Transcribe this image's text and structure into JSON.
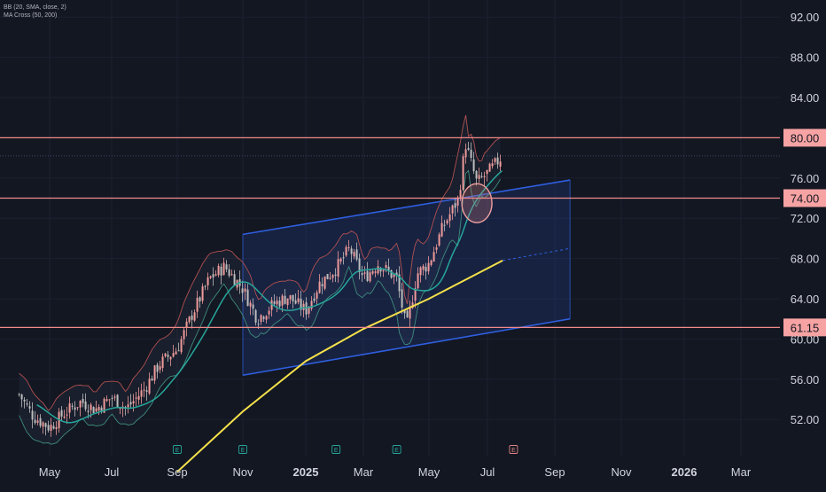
{
  "legend": {
    "bb": "BB (20, SMA, close, 2)",
    "ma": "MA Cross (50, 200)"
  },
  "colors": {
    "background": "#131722",
    "grid": "#1c2030",
    "axis_text": "#d1d4dc",
    "bullish": "#ef9a9a",
    "bearish": "#bdbdbd",
    "bb_band": "#b05050",
    "ma50": "#26a69a",
    "ma200": "#f5e14b",
    "channel": "#2f5fe0",
    "level_line": "#f08b8b",
    "level_tag_bg": "#f7a3a3",
    "level_tag_text": "#131722",
    "earnings_icon": "#26a69a",
    "upcoming_earnings_icon": "#e08585"
  },
  "chart_data": {
    "type": "candlestick",
    "title": "",
    "ylim": [
      48,
      94
    ],
    "y_ticks": [
      "92.00",
      "88.00",
      "84.00",
      "80.00",
      "76.00",
      "72.00",
      "68.00",
      "64.00",
      "60.00",
      "56.00",
      "52.00"
    ],
    "x_ticks": [
      "May",
      "Jul",
      "Sep",
      "Nov",
      "2025",
      "Mar",
      "May",
      "Jul",
      "Sep",
      "Nov",
      "2026",
      "Mar"
    ],
    "bold_x_ticks": [
      "2025",
      "2026"
    ],
    "price_levels": [
      {
        "label": "80.00",
        "value": 80.0
      },
      {
        "label": "74.00",
        "value": 74.0
      },
      {
        "label": "61.15",
        "value": 61.15
      }
    ],
    "current_price_line": 78.2,
    "channel": {
      "upper": [
        {
          "date": "2024-11",
          "value": 70.4
        },
        {
          "date": "2025-09-15",
          "value": 75.8
        }
      ],
      "lower": [
        {
          "date": "2024-11",
          "value": 56.4
        },
        {
          "date": "2025-09-15",
          "value": 62.0
        }
      ],
      "mid_dashed": [
        {
          "date": "2025-07-15",
          "value": 67.8
        },
        {
          "date": "2025-09-15",
          "value": 69.0
        }
      ]
    },
    "ma_lines": [
      {
        "key": "ma50",
        "label": "MA 50"
      },
      {
        "key": "ma200",
        "label": "MA 200"
      }
    ],
    "highlight_circle": {
      "date": "2025-06-20",
      "value": 73.5
    },
    "earnings_markers": [
      {
        "date": "2024-09",
        "label": "E",
        "upcoming": false
      },
      {
        "date": "2024-11",
        "label": "E",
        "upcoming": false
      },
      {
        "date": "2025-02",
        "label": "E",
        "upcoming": false
      },
      {
        "date": "2025-04",
        "label": "E",
        "upcoming": false
      },
      {
        "date": "2025-07-25",
        "label": "E",
        "upcoming": true
      }
    ],
    "price_path": [
      {
        "date": "2024-04-01",
        "close": 54.5
      },
      {
        "date": "2024-04-15",
        "close": 52.3
      },
      {
        "date": "2024-05-01",
        "close": 51.2
      },
      {
        "date": "2024-05-15",
        "close": 52.6
      },
      {
        "date": "2024-06-01",
        "close": 53.8
      },
      {
        "date": "2024-06-15",
        "close": 53.0
      },
      {
        "date": "2024-07-01",
        "close": 54.2
      },
      {
        "date": "2024-07-15",
        "close": 53.1
      },
      {
        "date": "2024-08-01",
        "close": 55.0
      },
      {
        "date": "2024-08-15",
        "close": 57.5
      },
      {
        "date": "2024-09-01",
        "close": 59.0
      },
      {
        "date": "2024-09-15",
        "close": 62.5
      },
      {
        "date": "2024-10-01",
        "close": 66.0
      },
      {
        "date": "2024-10-15",
        "close": 67.2
      },
      {
        "date": "2024-11-01",
        "close": 65.0
      },
      {
        "date": "2024-11-15",
        "close": 62.0
      },
      {
        "date": "2024-12-01",
        "close": 63.5
      },
      {
        "date": "2024-12-15",
        "close": 64.2
      },
      {
        "date": "2025-01-01",
        "close": 62.8
      },
      {
        "date": "2025-01-15",
        "close": 65.5
      },
      {
        "date": "2025-02-01",
        "close": 67.0
      },
      {
        "date": "2025-02-15",
        "close": 69.0
      },
      {
        "date": "2025-03-01",
        "close": 66.0
      },
      {
        "date": "2025-03-15",
        "close": 67.5
      },
      {
        "date": "2025-04-01",
        "close": 66.0
      },
      {
        "date": "2025-04-10",
        "close": 61.0
      },
      {
        "date": "2025-04-20",
        "close": 66.5
      },
      {
        "date": "2025-05-01",
        "close": 67.5
      },
      {
        "date": "2025-05-15",
        "close": 71.0
      },
      {
        "date": "2025-06-01",
        "close": 74.0
      },
      {
        "date": "2025-06-08",
        "close": 79.5
      },
      {
        "date": "2025-06-20",
        "close": 75.5
      },
      {
        "date": "2025-07-01",
        "close": 76.5
      },
      {
        "date": "2025-07-15",
        "close": 78.2
      }
    ]
  }
}
